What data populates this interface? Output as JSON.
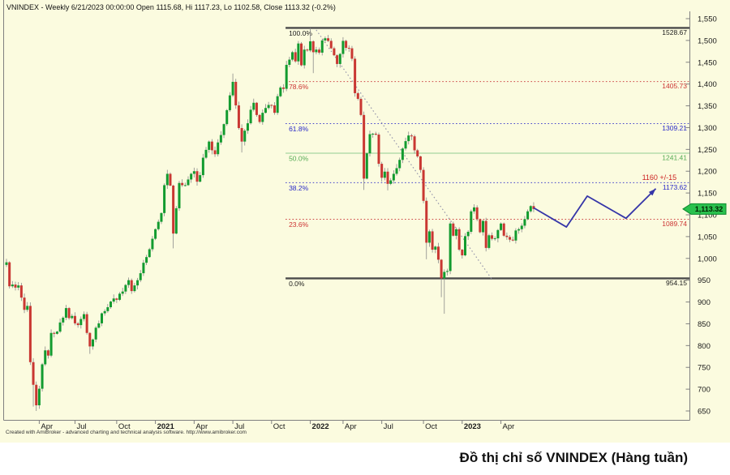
{
  "header": {
    "title": "VNINDEX - Weekly 6/21/2023 00:00:00 Open 1115.68, Hi 1117.23, Lo 1102.58, Close 1113.32 (-0.2%)"
  },
  "footer": {
    "credit": "Created with AmiBroker - advanced charting and technical analysis software. http://www.amibroker.com"
  },
  "caption": {
    "text": "Đồ thị chỉ số VNINDEX (Hàng tuần)"
  },
  "chart_data": {
    "type": "candlestick",
    "title": "VNINDEX Weekly",
    "interval": "Weekly",
    "last_bar_date": "6/21/2023",
    "last_bar": {
      "open": 1115.68,
      "high": 1117.23,
      "low": 1102.58,
      "close": 1113.32,
      "change_pct": "-0.2%"
    },
    "colors": {
      "background": "#fbfbdf",
      "candle_up": "#129b2f",
      "candle_down": "#c93732",
      "wick": "#8a8a8a",
      "axis_line": "#808080",
      "axis_text": "#1a1a1a",
      "projection": "#3535a8",
      "trendline": "#9494aa",
      "badge_bg": "#2ac14e",
      "badge_border": "#0c8a2e",
      "badge_text": "#002a00",
      "annotation": "#cc2222"
    },
    "y_axis": {
      "min": 650,
      "max": 1550,
      "step": 50,
      "position": "right",
      "tick_labels": [
        "650",
        "700",
        "750",
        "800",
        "850",
        "900",
        "950",
        "1,000",
        "1,050",
        "1,100",
        "1,150",
        "1,200",
        "1,250",
        "1,300",
        "1,350",
        "1,400",
        "1,450",
        "1,500",
        "1,550"
      ]
    },
    "x_axis": {
      "labels": [
        {
          "text": "Apr",
          "week": 11,
          "bold": false
        },
        {
          "text": "Jul",
          "week": 23,
          "bold": false
        },
        {
          "text": "Oct",
          "week": 37,
          "bold": false
        },
        {
          "text": "2021",
          "week": 50,
          "bold": true
        },
        {
          "text": "Apr",
          "week": 63,
          "bold": false
        },
        {
          "text": "Jul",
          "week": 76,
          "bold": false
        },
        {
          "text": "Oct",
          "week": 89,
          "bold": false
        },
        {
          "text": "2022",
          "week": 102,
          "bold": true
        },
        {
          "text": "Apr",
          "week": 113,
          "bold": false
        },
        {
          "text": "Jul",
          "week": 126,
          "bold": false
        },
        {
          "text": "Oct",
          "week": 140,
          "bold": false
        },
        {
          "text": "2023",
          "week": 153,
          "bold": true
        },
        {
          "text": "Apr",
          "week": 166,
          "bold": false
        }
      ]
    },
    "fib_levels": [
      {
        "pct": "100.0%",
        "label": "1528.67",
        "value": 1528.67,
        "line_color": "#4a4a4a",
        "text_color": "#1a1a1a",
        "style": "solid",
        "width": 2.4
      },
      {
        "pct": "78.6%",
        "label": "1405.73",
        "value": 1405.73,
        "line_color": "#cc4444",
        "text_color": "#cc3333",
        "style": "dotted",
        "width": 1
      },
      {
        "pct": "61.8%",
        "label": "1309.21",
        "value": 1309.21,
        "line_color": "#4444cc",
        "text_color": "#2929c8",
        "style": "dotted",
        "width": 1
      },
      {
        "pct": "50.0%",
        "label": "1241.41",
        "value": 1241.41,
        "line_color": "#90cc90",
        "text_color": "#55aa55",
        "style": "solid",
        "width": 1
      },
      {
        "pct": "38.2%",
        "label": "1173.62",
        "value": 1173.62,
        "line_color": "#4444cc",
        "text_color": "#2929c8",
        "style": "dotted",
        "width": 1
      },
      {
        "pct": "23.6%",
        "label": "1089.74",
        "value": 1089.74,
        "line_color": "#cc4444",
        "text_color": "#cc3333",
        "style": "dotted",
        "width": 1
      },
      {
        "pct": "0.0%",
        "label": "954.15",
        "value": 954.15,
        "line_color": "#4a4a4a",
        "text_color": "#1a1a1a",
        "style": "solid",
        "width": 2.4
      }
    ],
    "fib_start_week": 93.7,
    "trendline": {
      "from": {
        "week": 104,
        "value": 1524
      },
      "to": {
        "week": 163,
        "value": 952
      },
      "style": "dotted"
    },
    "projection": {
      "points": [
        {
          "week": 177,
          "value": 1116
        },
        {
          "week": 188,
          "value": 1072
        },
        {
          "week": 195,
          "value": 1143
        },
        {
          "week": 208,
          "value": 1092
        },
        {
          "week": 218,
          "value": 1160
        }
      ],
      "arrow_at_end": true
    },
    "target_annotation": {
      "text": "1160 +/-15",
      "week": 225,
      "value": 1186
    },
    "last_price": {
      "label": "1,113.32",
      "value": 1113.32
    },
    "first_open": 985,
    "weekly_closes": [
      991,
      936,
      940,
      933,
      938,
      910,
      882,
      891,
      762,
      710,
      663,
      701,
      757,
      789,
      777,
      829,
      827,
      832,
      853,
      864,
      886,
      863,
      868,
      851,
      847,
      861,
      872,
      829,
      798,
      814,
      841,
      851,
      874,
      879,
      888,
      901,
      908,
      905,
      919,
      924,
      939,
      950,
      925,
      938,
      950,
      966,
      990,
      1003,
      1021,
      1045,
      1067,
      1084,
      1104,
      1168,
      1194,
      1167,
      1057,
      1115,
      1173,
      1168,
      1168,
      1181,
      1194,
      1200,
      1176,
      1191,
      1231,
      1249,
      1268,
      1248,
      1239,
      1266,
      1283,
      1308,
      1340,
      1374,
      1405,
      1351,
      1299,
      1268,
      1293,
      1310,
      1341,
      1357,
      1329,
      1313,
      1334,
      1345,
      1352,
      1351,
      1334,
      1372,
      1392,
      1389,
      1444,
      1456,
      1473,
      1452,
      1493,
      1443,
      1479,
      1477,
      1498,
      1473,
      1479,
      1472,
      1500,
      1505,
      1499,
      1482,
      1466,
      1446,
      1469,
      1499,
      1483,
      1482,
      1458,
      1379,
      1366,
      1329,
      1183,
      1241,
      1285,
      1286,
      1284,
      1217,
      1185,
      1199,
      1171,
      1179,
      1194,
      1207,
      1226,
      1252,
      1269,
      1282,
      1280,
      1248,
      1234,
      1203,
      1132,
      1036,
      1062,
      1020,
      1027,
      997,
      954,
      969,
      971,
      1080,
      1052,
      1067,
      1020,
      1007,
      1051,
      1061,
      1108,
      1117,
      1090,
      1060,
      1086,
      1024,
      1053,
      1045,
      1046,
      1065,
      1080,
      1052,
      1049,
      1043,
      1041,
      1064,
      1067,
      1075,
      1090,
      1108,
      1120,
      1113.32
    ],
    "wick_overrides": {
      "9": {
        "low": 660
      },
      "10": {
        "low": 650
      },
      "11": {
        "low": 655
      },
      "28": {
        "low": 781
      },
      "56": {
        "low": 1023
      },
      "76": {
        "high": 1424
      },
      "79": {
        "low": 1243
      },
      "102": {
        "high": 1528.67
      },
      "103": {
        "low": 1425
      },
      "120": {
        "low": 1157
      },
      "128": {
        "low": 1156
      },
      "141": {
        "low": 998
      },
      "146": {
        "low": 911
      },
      "147": {
        "low": 873
      },
      "161": {
        "low": 1016
      }
    }
  }
}
